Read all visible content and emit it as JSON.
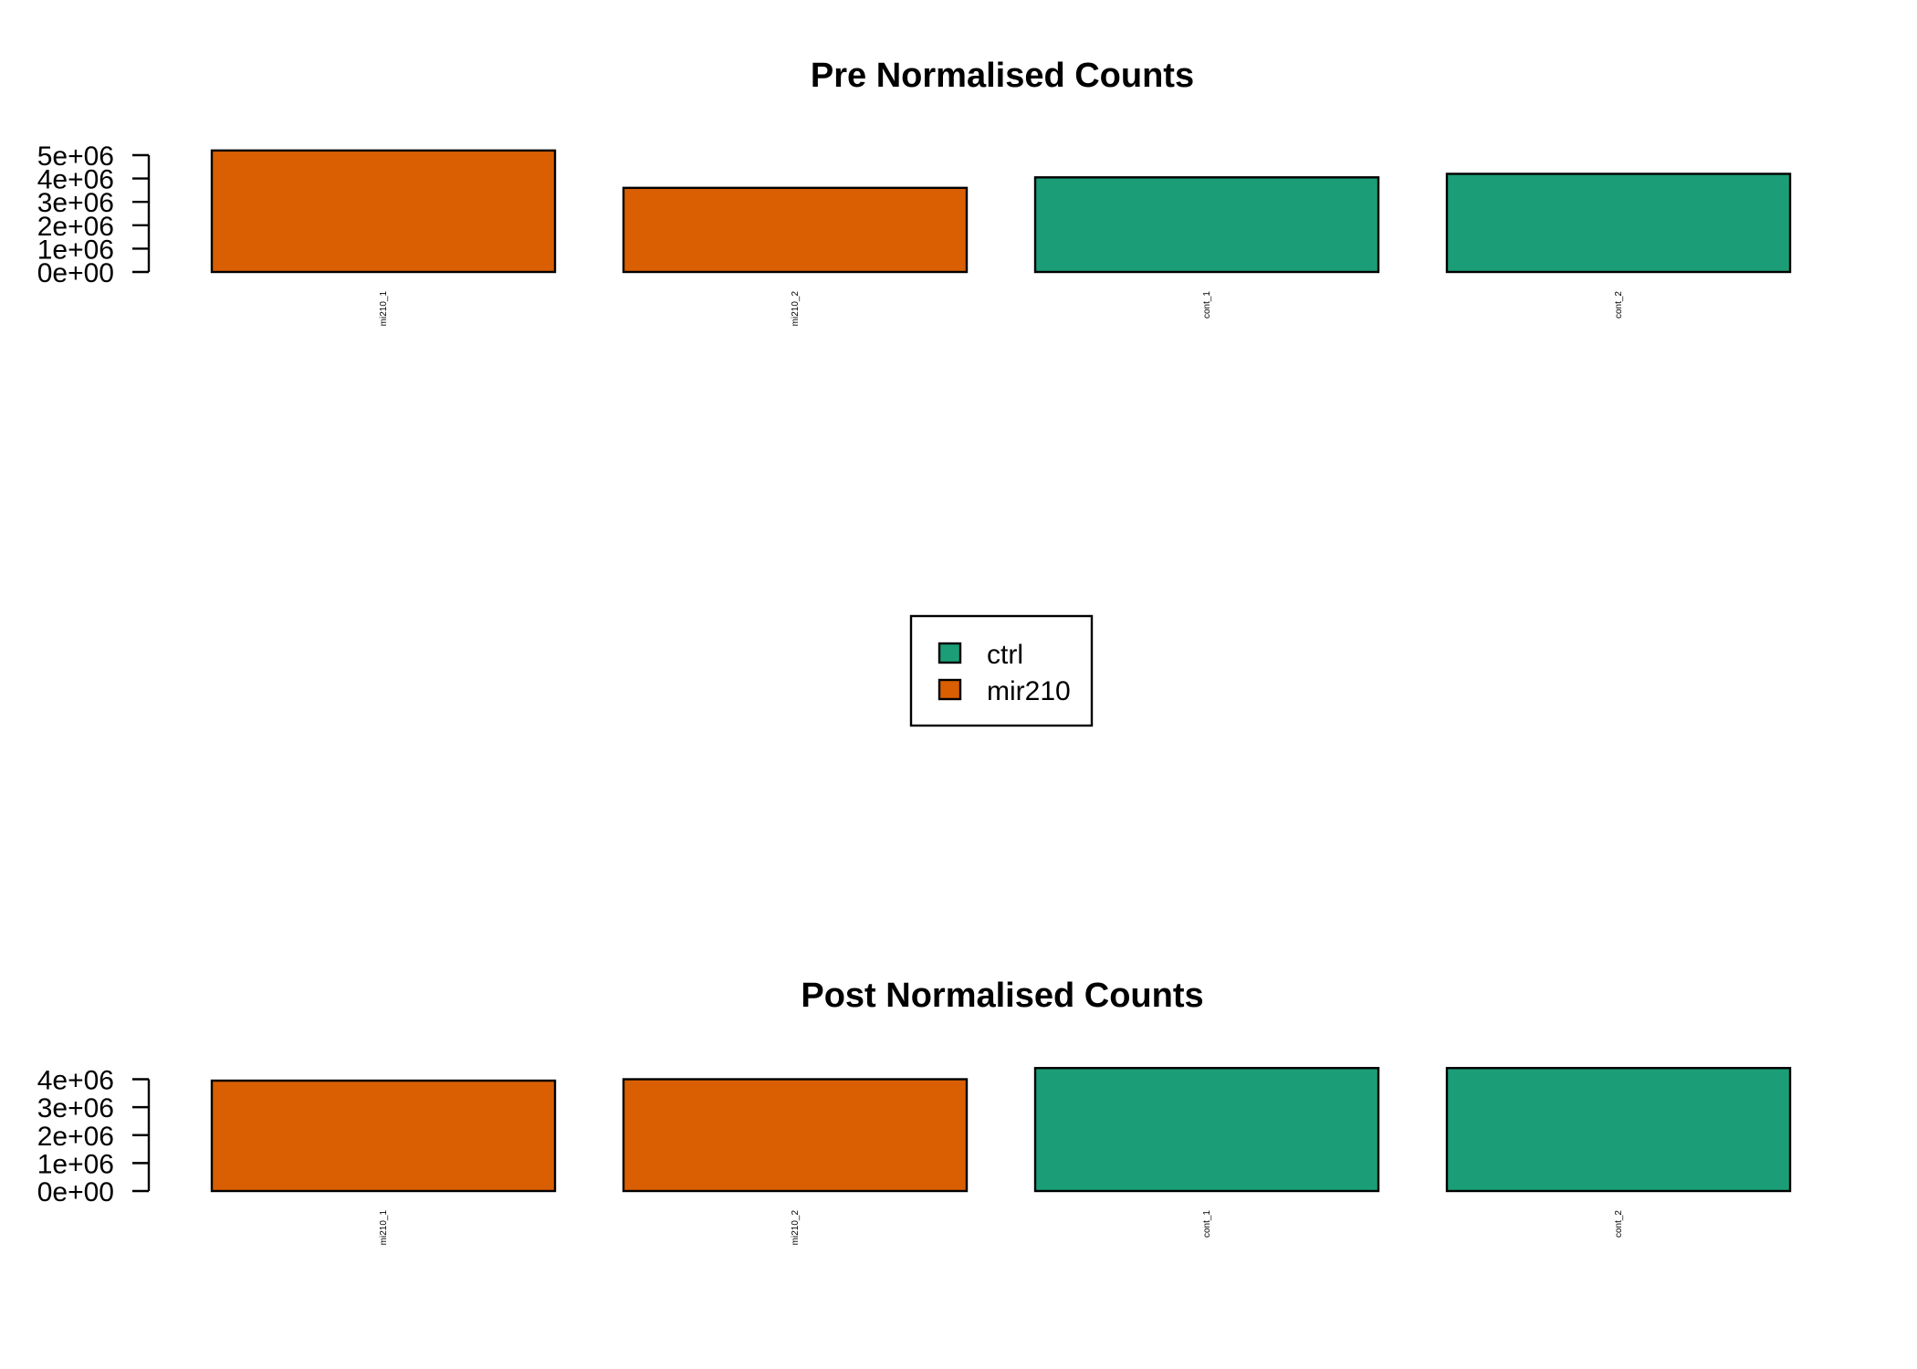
{
  "colors": {
    "ctrl": "#1b9e77",
    "mir210": "#d95f02"
  },
  "legend": [
    {
      "label": "ctrl",
      "group": "ctrl"
    },
    {
      "label": "mir210",
      "group": "mir210"
    }
  ],
  "chart_data": [
    {
      "type": "bar",
      "title": "Pre Normalised Counts",
      "categories": [
        "mi210_1",
        "mi210_2",
        "cont_1",
        "cont_2"
      ],
      "groups": [
        "mir210",
        "mir210",
        "ctrl",
        "ctrl"
      ],
      "values": [
        5200000,
        3600000,
        4050000,
        4200000
      ],
      "yticks": [
        "0e+00",
        "1e+06",
        "2e+06",
        "3e+06",
        "4e+06",
        "5e+06"
      ],
      "ylim": [
        0,
        5000000
      ],
      "xlabel": "",
      "ylabel": ""
    },
    {
      "type": "bar",
      "title": "Post Normalised Counts",
      "categories": [
        "mi210_1",
        "mi210_2",
        "cont_1",
        "cont_2"
      ],
      "groups": [
        "mir210",
        "mir210",
        "ctrl",
        "ctrl"
      ],
      "values": [
        3950000,
        4000000,
        4400000,
        4400000
      ],
      "yticks": [
        "0e+00",
        "1e+06",
        "2e+06",
        "3e+06",
        "4e+06"
      ],
      "ylim": [
        0,
        4000000
      ],
      "xlabel": "",
      "ylabel": ""
    }
  ]
}
